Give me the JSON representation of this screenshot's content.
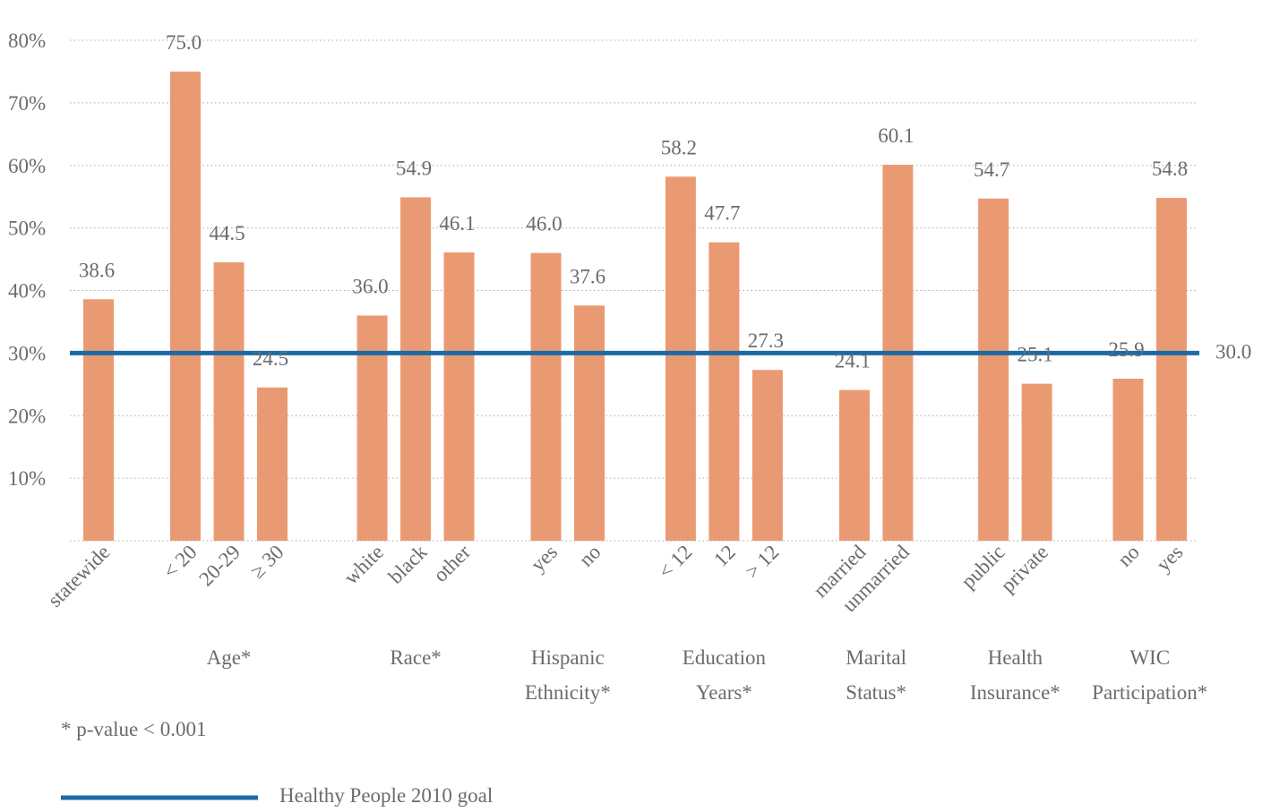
{
  "chart_data": {
    "type": "bar",
    "ylim": [
      0,
      80
    ],
    "yticks": [
      "10%",
      "20%",
      "30%",
      "40%",
      "50%",
      "60%",
      "70%",
      "80%"
    ],
    "grid": true,
    "bar_color": "#ea9a72",
    "goal_line_color": "#1b6aa5",
    "bars": [
      {
        "label": "statewide",
        "value": 38.6,
        "value_label": "38.6",
        "pos": 0
      },
      {
        "label": "< 20",
        "value": 75.0,
        "value_label": "75.0",
        "pos": 2
      },
      {
        "label": "20-29",
        "value": 44.5,
        "value_label": "44.5",
        "pos": 3
      },
      {
        "label": "≥ 30",
        "value": 24.5,
        "value_label": "24.5",
        "pos": 4
      },
      {
        "label": "white",
        "value": 36.0,
        "value_label": "36.0",
        "pos": 6.3
      },
      {
        "label": "black",
        "value": 54.9,
        "value_label": "54.9",
        "pos": 7.3
      },
      {
        "label": "other",
        "value": 46.1,
        "value_label": "46.1",
        "pos": 8.3
      },
      {
        "label": "yes",
        "value": 46.0,
        "value_label": "46.0",
        "pos": 10.3
      },
      {
        "label": "no",
        "value": 37.6,
        "value_label": "37.6",
        "pos": 11.3
      },
      {
        "label": "< 12",
        "value": 58.2,
        "value_label": "58.2",
        "pos": 13.4
      },
      {
        "label": "12",
        "value": 47.7,
        "value_label": "47.7",
        "pos": 14.4
      },
      {
        "label": "> 12",
        "value": 27.3,
        "value_label": "27.3",
        "pos": 15.4
      },
      {
        "label": "married",
        "value": 24.1,
        "value_label": "24.1",
        "pos": 17.4
      },
      {
        "label": "unmarried",
        "value": 60.1,
        "value_label": "60.1",
        "pos": 18.4
      },
      {
        "label": "public",
        "value": 54.7,
        "value_label": "54.7",
        "pos": 20.6
      },
      {
        "label": "private",
        "value": 25.1,
        "value_label": "25.1",
        "pos": 21.6
      },
      {
        "label": "no",
        "value": 25.9,
        "value_label": "25.9",
        "pos": 23.7
      },
      {
        "label": "yes",
        "value": 54.8,
        "value_label": "54.8",
        "pos": 24.7
      }
    ],
    "groups": [
      {
        "lines": [
          "Age*"
        ],
        "center": 3
      },
      {
        "lines": [
          "Race*"
        ],
        "center": 7.3
      },
      {
        "lines": [
          "Hispanic",
          "Ethnicity*"
        ],
        "center": 10.8
      },
      {
        "lines": [
          "Education",
          "Years*"
        ],
        "center": 14.4
      },
      {
        "lines": [
          "Marital",
          "Status*"
        ],
        "center": 17.9
      },
      {
        "lines": [
          "Health",
          "Insurance*"
        ],
        "center": 21.1
      },
      {
        "lines": [
          "WIC",
          "Participation*"
        ],
        "center": 24.2
      }
    ],
    "goal": {
      "value": 30.0,
      "label": "30.0",
      "legend": "Healthy People 2010 goal"
    },
    "footnote": "* p-value < 0.001"
  }
}
